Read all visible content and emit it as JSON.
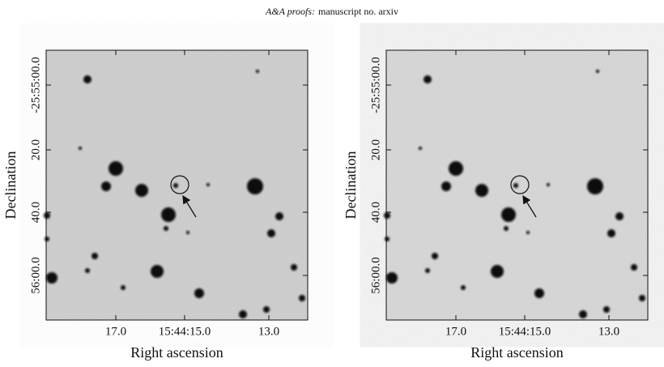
{
  "header": {
    "journal": "A&A proofs:",
    "manuscript": "manuscript no. arxiv"
  },
  "panels": [
    {
      "x_label": "Right ascension",
      "y_label": "Declination",
      "x_ticks": [
        "17.0",
        "15:44:15.0",
        "13.0"
      ],
      "y_ticks": [
        "-25:55:00.0",
        "20.0",
        "40.0",
        "56:00.0"
      ]
    },
    {
      "x_label": "Right ascension",
      "y_label": "Declination",
      "x_ticks": [
        "17.0",
        "15:44:15.0",
        "13.0"
      ],
      "y_ticks": [
        "-25:55:00.0",
        "20.0",
        "40.0",
        "56:00.0"
      ]
    }
  ]
}
